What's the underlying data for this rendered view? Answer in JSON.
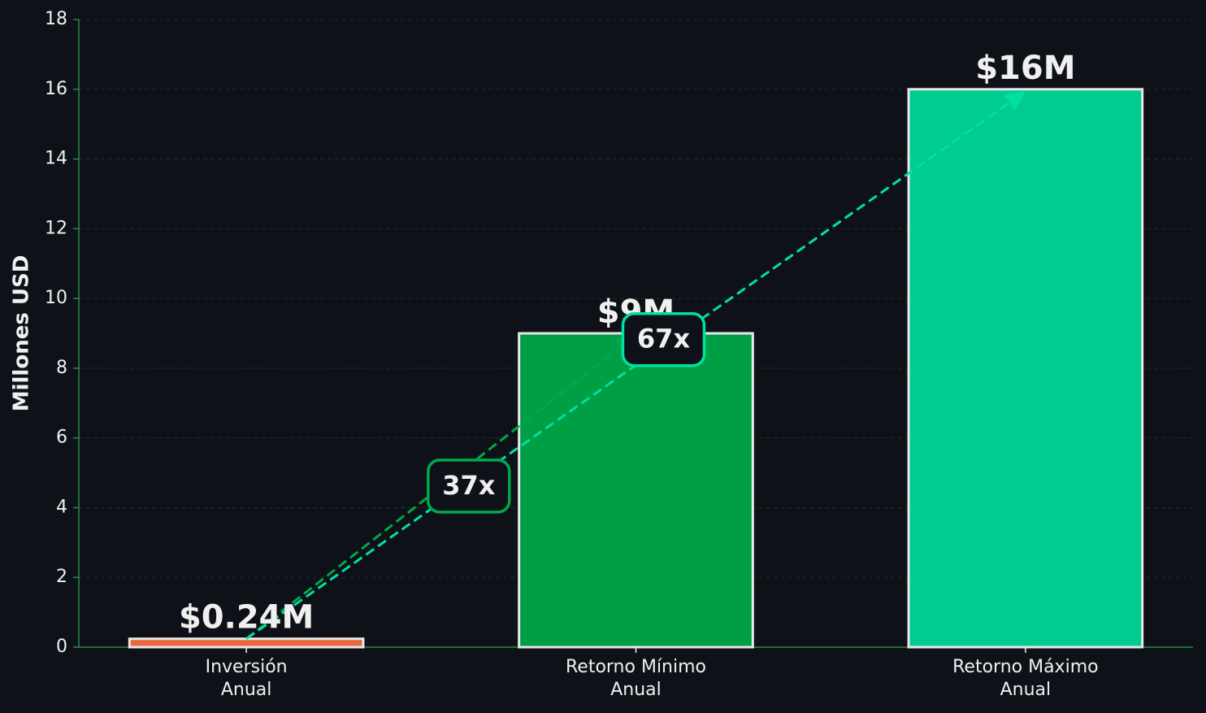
{
  "chart_data": {
    "type": "bar",
    "y_label": "Millones USD",
    "categories": [
      "Inversión\nAnual",
      "Retorno Mínimo\nAnual",
      "Retorno Máximo\nAnual"
    ],
    "values": [
      0.24,
      9,
      16
    ],
    "value_labels": [
      "$0.24M",
      "$9M",
      "$16M"
    ],
    "colors": [
      "#e8673c",
      "#009e45",
      "#00cc90"
    ],
    "ylim": [
      0,
      18
    ],
    "yticks": [
      0,
      2,
      4,
      6,
      8,
      10,
      12,
      14,
      16,
      18
    ],
    "grid": true,
    "annotations": [
      {
        "text": "37x",
        "color": "#00a84a"
      },
      {
        "text": "67x",
        "color": "#00e0a0"
      }
    ]
  }
}
